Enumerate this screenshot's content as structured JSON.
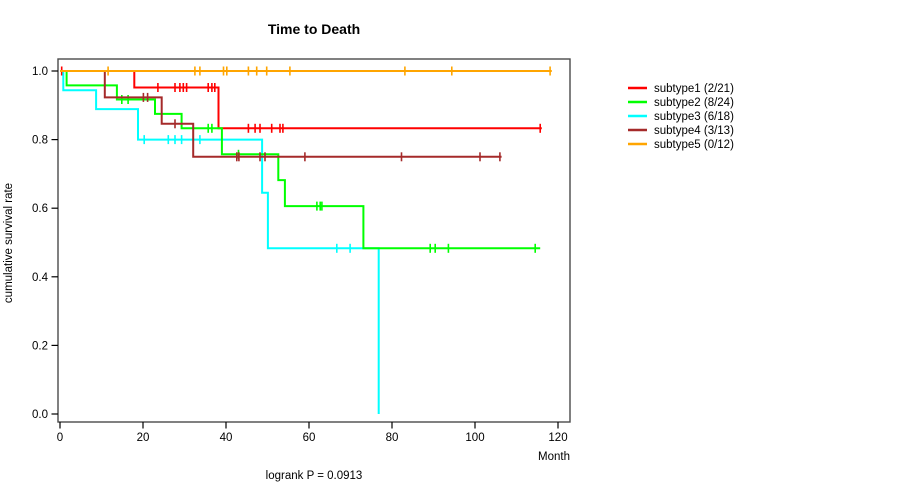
{
  "title": "Time to Death",
  "footer": "logrank P = 0.0913",
  "chart_data": {
    "type": "line",
    "subtype": "kaplan-meier-step",
    "title": "Time to Death",
    "xlabel": "Month",
    "ylabel": "cumulative survival rate",
    "annotation": "logrank P = 0.0913",
    "xlim": [
      0,
      123
    ],
    "ylim": [
      0.0,
      1.0
    ],
    "grid": false,
    "legend_position": "right-outside",
    "xticks": [
      {
        "v": 0,
        "label": "0"
      },
      {
        "v": 20,
        "label": "20"
      },
      {
        "v": 40,
        "label": "40"
      },
      {
        "v": 60,
        "label": "60"
      },
      {
        "v": 80,
        "label": "80"
      },
      {
        "v": 100,
        "label": "100"
      },
      {
        "v": 120,
        "label": "120"
      }
    ],
    "yticks": [
      {
        "v": 0.0,
        "label": "0.0"
      },
      {
        "v": 0.2,
        "label": "0.2"
      },
      {
        "v": 0.4,
        "label": "0.4"
      },
      {
        "v": 0.6,
        "label": "0.6"
      },
      {
        "v": 0.8,
        "label": "0.8"
      },
      {
        "v": 1.0,
        "label": "1.0"
      }
    ],
    "draw_order": [
      "subtype1",
      "subtype3",
      "subtype2",
      "subtype4",
      "subtype5"
    ],
    "series": [
      {
        "name": "subtype1",
        "label": "subtype1 (2/21)",
        "events": "2/21",
        "color": "#FF0000",
        "start": [
          0,
          1.0
        ],
        "steps": [
          [
            17.9,
            0.952
          ],
          [
            38.2,
            0.833
          ]
        ],
        "end_month": 116.1,
        "censors": [
          [
            0.4,
            1.0
          ],
          [
            23.6,
            0.952
          ],
          [
            27.7,
            0.952
          ],
          [
            28.9,
            0.952
          ],
          [
            29.7,
            0.952
          ],
          [
            30.5,
            0.952
          ],
          [
            35.7,
            0.952
          ],
          [
            36.6,
            0.952
          ],
          [
            37.3,
            0.952
          ],
          [
            45.4,
            0.833
          ],
          [
            47.0,
            0.833
          ],
          [
            48.2,
            0.833
          ],
          [
            51.0,
            0.833
          ],
          [
            53.0,
            0.833
          ],
          [
            53.7,
            0.833
          ],
          [
            115.7,
            0.833
          ]
        ]
      },
      {
        "name": "subtype2",
        "label": "subtype2 (8/24)",
        "events": "8/24",
        "color": "#00FF00",
        "start": [
          0,
          1.0
        ],
        "steps": [
          [
            1.6,
            0.958
          ],
          [
            13.7,
            0.917
          ],
          [
            22.9,
            0.875
          ],
          [
            29.3,
            0.833
          ],
          [
            39.0,
            0.757
          ],
          [
            52.6,
            0.682
          ],
          [
            54.2,
            0.606
          ],
          [
            73.1,
            0.483
          ]
        ],
        "end_month": 115.7,
        "censors": [
          [
            14.9,
            0.917
          ],
          [
            16.4,
            0.917
          ],
          [
            35.7,
            0.833
          ],
          [
            36.6,
            0.833
          ],
          [
            43.0,
            0.757
          ],
          [
            61.9,
            0.606
          ],
          [
            62.7,
            0.606
          ],
          [
            63.1,
            0.606
          ],
          [
            89.2,
            0.483
          ],
          [
            90.4,
            0.483
          ],
          [
            93.6,
            0.483
          ],
          [
            114.5,
            0.483
          ]
        ]
      },
      {
        "name": "subtype3",
        "label": "subtype3 (6/18)",
        "events": "6/18",
        "color": "#00FFFF",
        "start": [
          0,
          1.0
        ],
        "steps": [
          [
            0.8,
            0.944
          ],
          [
            8.7,
            0.889
          ],
          [
            18.8,
            0.8
          ],
          [
            48.7,
            0.645
          ],
          [
            50.1,
            0.483
          ],
          [
            76.8,
            0.0
          ]
        ],
        "end_month": 76.8,
        "censors": [
          [
            20.3,
            0.8
          ],
          [
            26.1,
            0.8
          ],
          [
            27.7,
            0.8
          ],
          [
            29.3,
            0.8
          ],
          [
            33.7,
            0.8
          ],
          [
            66.7,
            0.483
          ],
          [
            69.9,
            0.483
          ]
        ]
      },
      {
        "name": "subtype4",
        "label": "subtype4 (3/13)",
        "events": "3/13",
        "color": "#A52A2A",
        "start": [
          0,
          1.0
        ],
        "steps": [
          [
            10.8,
            0.923
          ],
          [
            24.5,
            0.846
          ],
          [
            32.1,
            0.75
          ]
        ],
        "end_month": 106.4,
        "censors": [
          [
            20.1,
            0.923
          ],
          [
            21.1,
            0.923
          ],
          [
            27.7,
            0.846
          ],
          [
            42.6,
            0.75
          ],
          [
            43.1,
            0.75
          ],
          [
            48.2,
            0.75
          ],
          [
            49.4,
            0.75
          ],
          [
            59.0,
            0.75
          ],
          [
            82.3,
            0.75
          ],
          [
            101.2,
            0.75
          ],
          [
            106.0,
            0.75
          ]
        ]
      },
      {
        "name": "subtype5",
        "label": "subtype5 (0/12)",
        "events": "0/12",
        "color": "#FFA500",
        "start": [
          0,
          1.0
        ],
        "steps": [],
        "end_month": 118.5,
        "censors": [
          [
            11.6,
            1.0
          ],
          [
            32.5,
            1.0
          ],
          [
            33.7,
            1.0
          ],
          [
            39.4,
            1.0
          ],
          [
            40.2,
            1.0
          ],
          [
            45.4,
            1.0
          ],
          [
            47.4,
            1.0
          ],
          [
            49.8,
            1.0
          ],
          [
            55.4,
            1.0
          ],
          [
            83.1,
            1.0
          ],
          [
            94.4,
            1.0
          ],
          [
            118.1,
            1.0
          ]
        ]
      }
    ]
  }
}
